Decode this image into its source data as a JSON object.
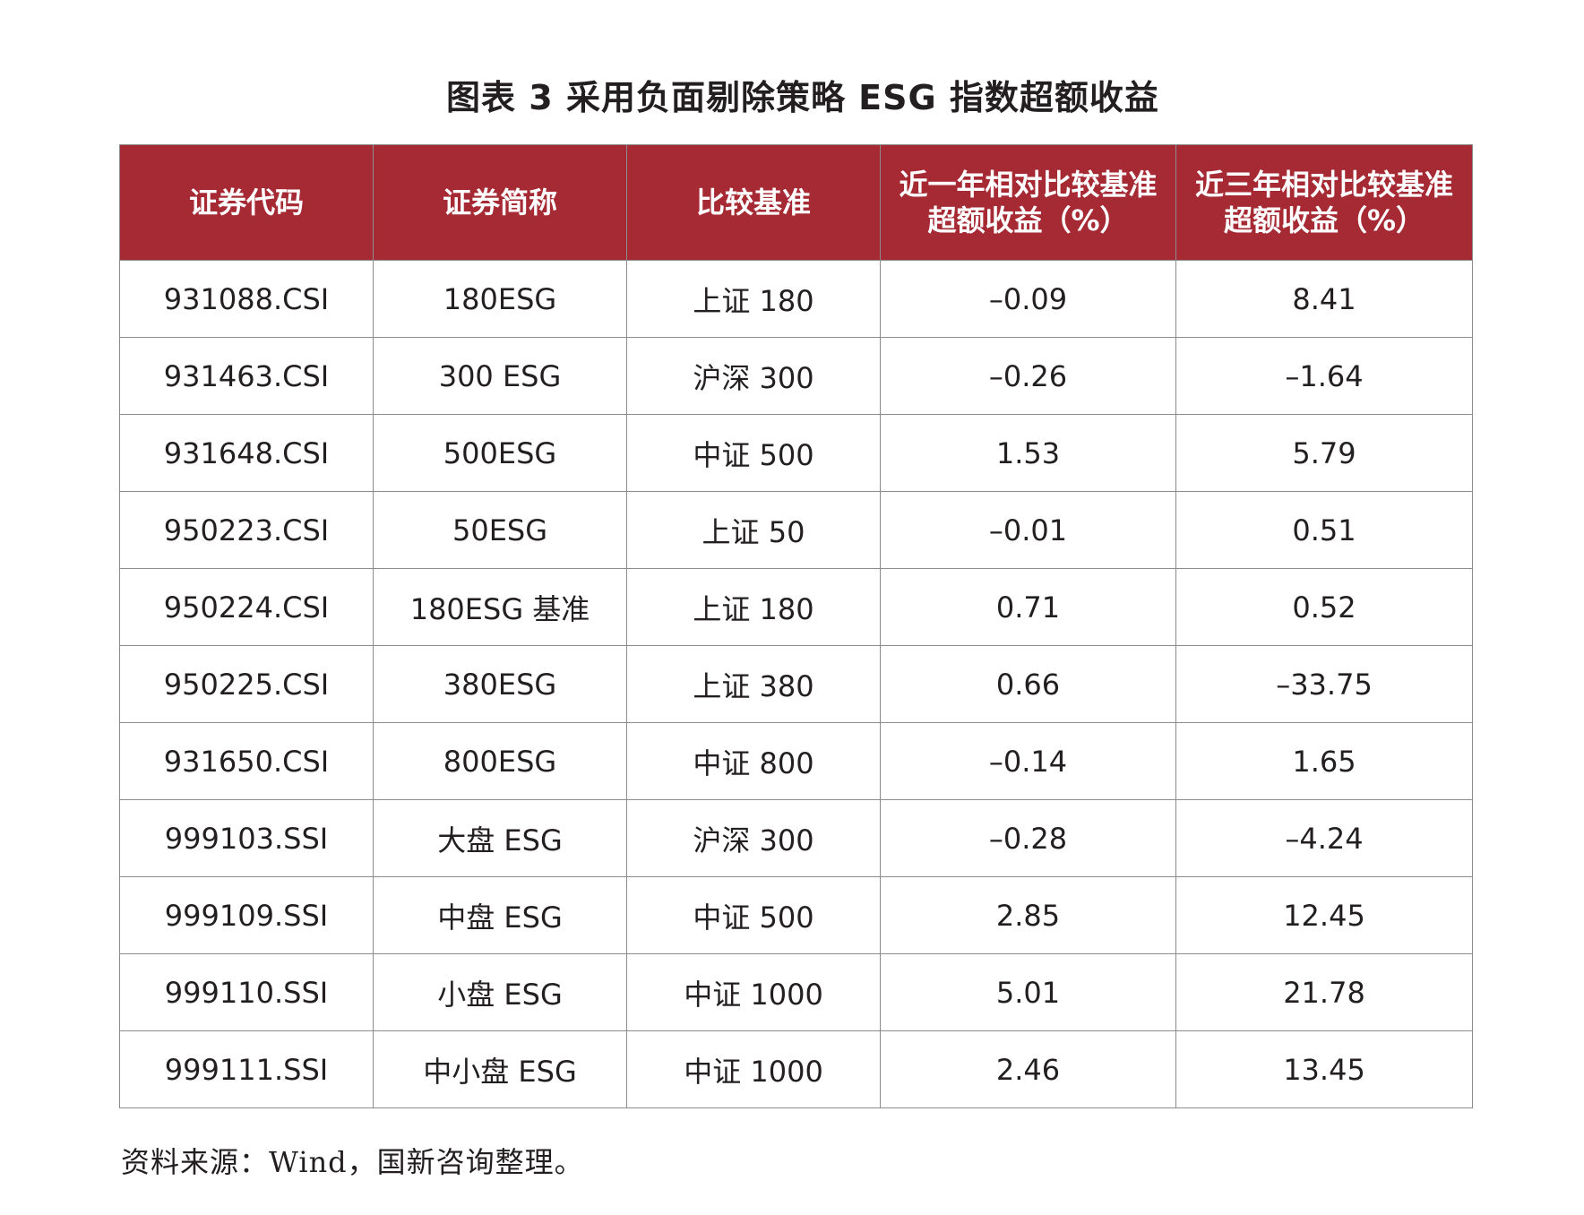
{
  "title": "图表 3 采用负面剔除策略 ESG 指数超额收益",
  "table": {
    "headers": [
      "证券代码",
      "证券简称",
      "比较基准",
      "近一年相对比较基准超额收益（%）",
      "近三年相对比较基准超额收益（%）"
    ],
    "rows": [
      [
        "931088.CSI",
        "180ESG",
        "上证 180",
        "–0.09",
        "8.41"
      ],
      [
        "931463.CSI",
        "300 ESG",
        "沪深 300",
        "–0.26",
        "–1.64"
      ],
      [
        "931648.CSI",
        "500ESG",
        "中证 500",
        "1.53",
        "5.79"
      ],
      [
        "950223.CSI",
        "50ESG",
        "上证 50",
        "–0.01",
        "0.51"
      ],
      [
        "950224.CSI",
        "180ESG 基准",
        "上证 180",
        "0.71",
        "0.52"
      ],
      [
        "950225.CSI",
        "380ESG",
        "上证 380",
        "0.66",
        "–33.75"
      ],
      [
        "931650.CSI",
        "800ESG",
        "中证 800",
        "–0.14",
        "1.65"
      ],
      [
        "999103.SSI",
        "大盘 ESG",
        "沪深 300",
        "–0.28",
        "–4.24"
      ],
      [
        "999109.SSI",
        "中盘 ESG",
        "中证 500",
        "2.85",
        "12.45"
      ],
      [
        "999110.SSI",
        "小盘 ESG",
        "中证 1000",
        "5.01",
        "21.78"
      ],
      [
        "999111.SSI",
        "中小盘 ESG",
        "中证 1000",
        "2.46",
        "13.45"
      ]
    ]
  },
  "source": "资料来源：Wind，国新咨询整理。",
  "colors": {
    "header_bg": "#a62a33",
    "header_text": "#ffffff",
    "border": "#8c8c8c"
  }
}
